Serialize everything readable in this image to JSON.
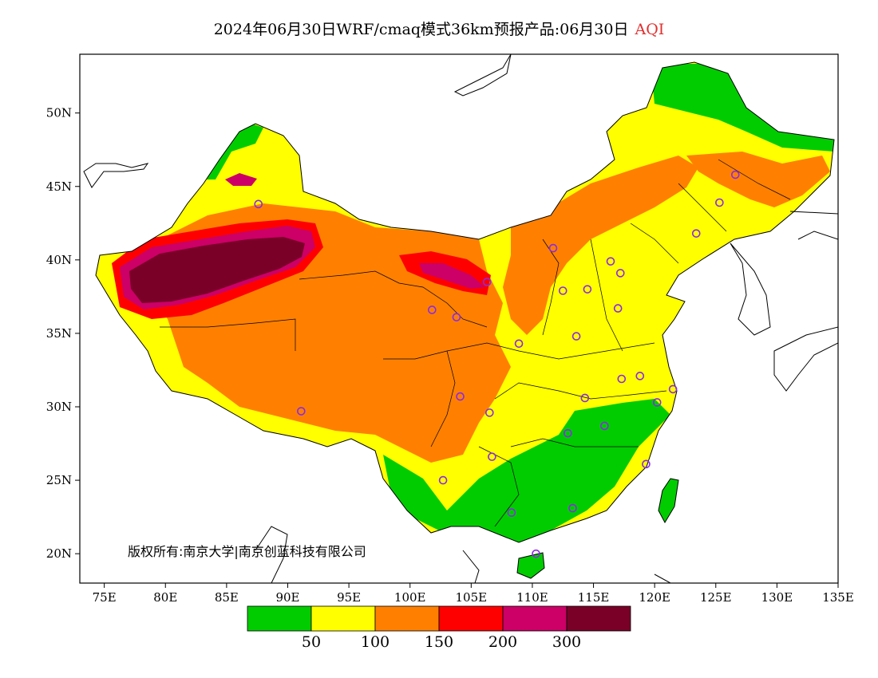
{
  "title": {
    "main": "2024年06月30日WRF/cmaq模式36km预报产品:06月30日",
    "variable": "AQI"
  },
  "axes": {
    "longitude_ticks": [
      "75E",
      "80E",
      "85E",
      "90E",
      "95E",
      "100E",
      "105E",
      "110E",
      "115E",
      "120E",
      "125E",
      "130E",
      "135E"
    ],
    "latitude_ticks": [
      "50N",
      "45N",
      "40N",
      "35N",
      "30N",
      "25N",
      "20N"
    ]
  },
  "copyright": "版权所有:南京大学|南京创蓝科技有限公司",
  "legend": {
    "colors": [
      "#00cc00",
      "#ffff00",
      "#ff8000",
      "#ff0000",
      "#cc0066",
      "#7a0028"
    ],
    "labels": [
      "50",
      "100",
      "150",
      "200",
      "300"
    ]
  },
  "colors": {
    "good": "#00cc00",
    "moderate": "#ffff00",
    "usg": "#ff8000",
    "unhealthy": "#ff0000",
    "very_unhealthy": "#cc0066",
    "hazardous": "#7a0028",
    "city_marker": "#8a2be2"
  },
  "stations": [
    {
      "lon": 87.6,
      "lat": 43.8
    },
    {
      "lon": 126.6,
      "lat": 45.8
    },
    {
      "lon": 125.3,
      "lat": 43.9
    },
    {
      "lon": 123.4,
      "lat": 41.8
    },
    {
      "lon": 111.7,
      "lat": 40.8
    },
    {
      "lon": 116.4,
      "lat": 39.9
    },
    {
      "lon": 117.2,
      "lat": 39.1
    },
    {
      "lon": 106.3,
      "lat": 38.5
    },
    {
      "lon": 112.5,
      "lat": 37.9
    },
    {
      "lon": 114.5,
      "lat": 38.0
    },
    {
      "lon": 101.8,
      "lat": 36.6
    },
    {
      "lon": 103.8,
      "lat": 36.1
    },
    {
      "lon": 117.0,
      "lat": 36.7
    },
    {
      "lon": 108.9,
      "lat": 34.3
    },
    {
      "lon": 113.6,
      "lat": 34.8
    },
    {
      "lon": 117.3,
      "lat": 31.9
    },
    {
      "lon": 118.8,
      "lat": 32.1
    },
    {
      "lon": 121.5,
      "lat": 31.2
    },
    {
      "lon": 120.2,
      "lat": 30.3
    },
    {
      "lon": 114.3,
      "lat": 30.6
    },
    {
      "lon": 104.1,
      "lat": 30.7
    },
    {
      "lon": 106.5,
      "lat": 29.6
    },
    {
      "lon": 91.1,
      "lat": 29.7
    },
    {
      "lon": 112.9,
      "lat": 28.2
    },
    {
      "lon": 115.9,
      "lat": 28.7
    },
    {
      "lon": 106.7,
      "lat": 26.6
    },
    {
      "lon": 119.3,
      "lat": 26.1
    },
    {
      "lon": 102.7,
      "lat": 25.0
    },
    {
      "lon": 108.3,
      "lat": 22.8
    },
    {
      "lon": 113.3,
      "lat": 23.1
    },
    {
      "lon": 110.3,
      "lat": 20.0
    }
  ]
}
